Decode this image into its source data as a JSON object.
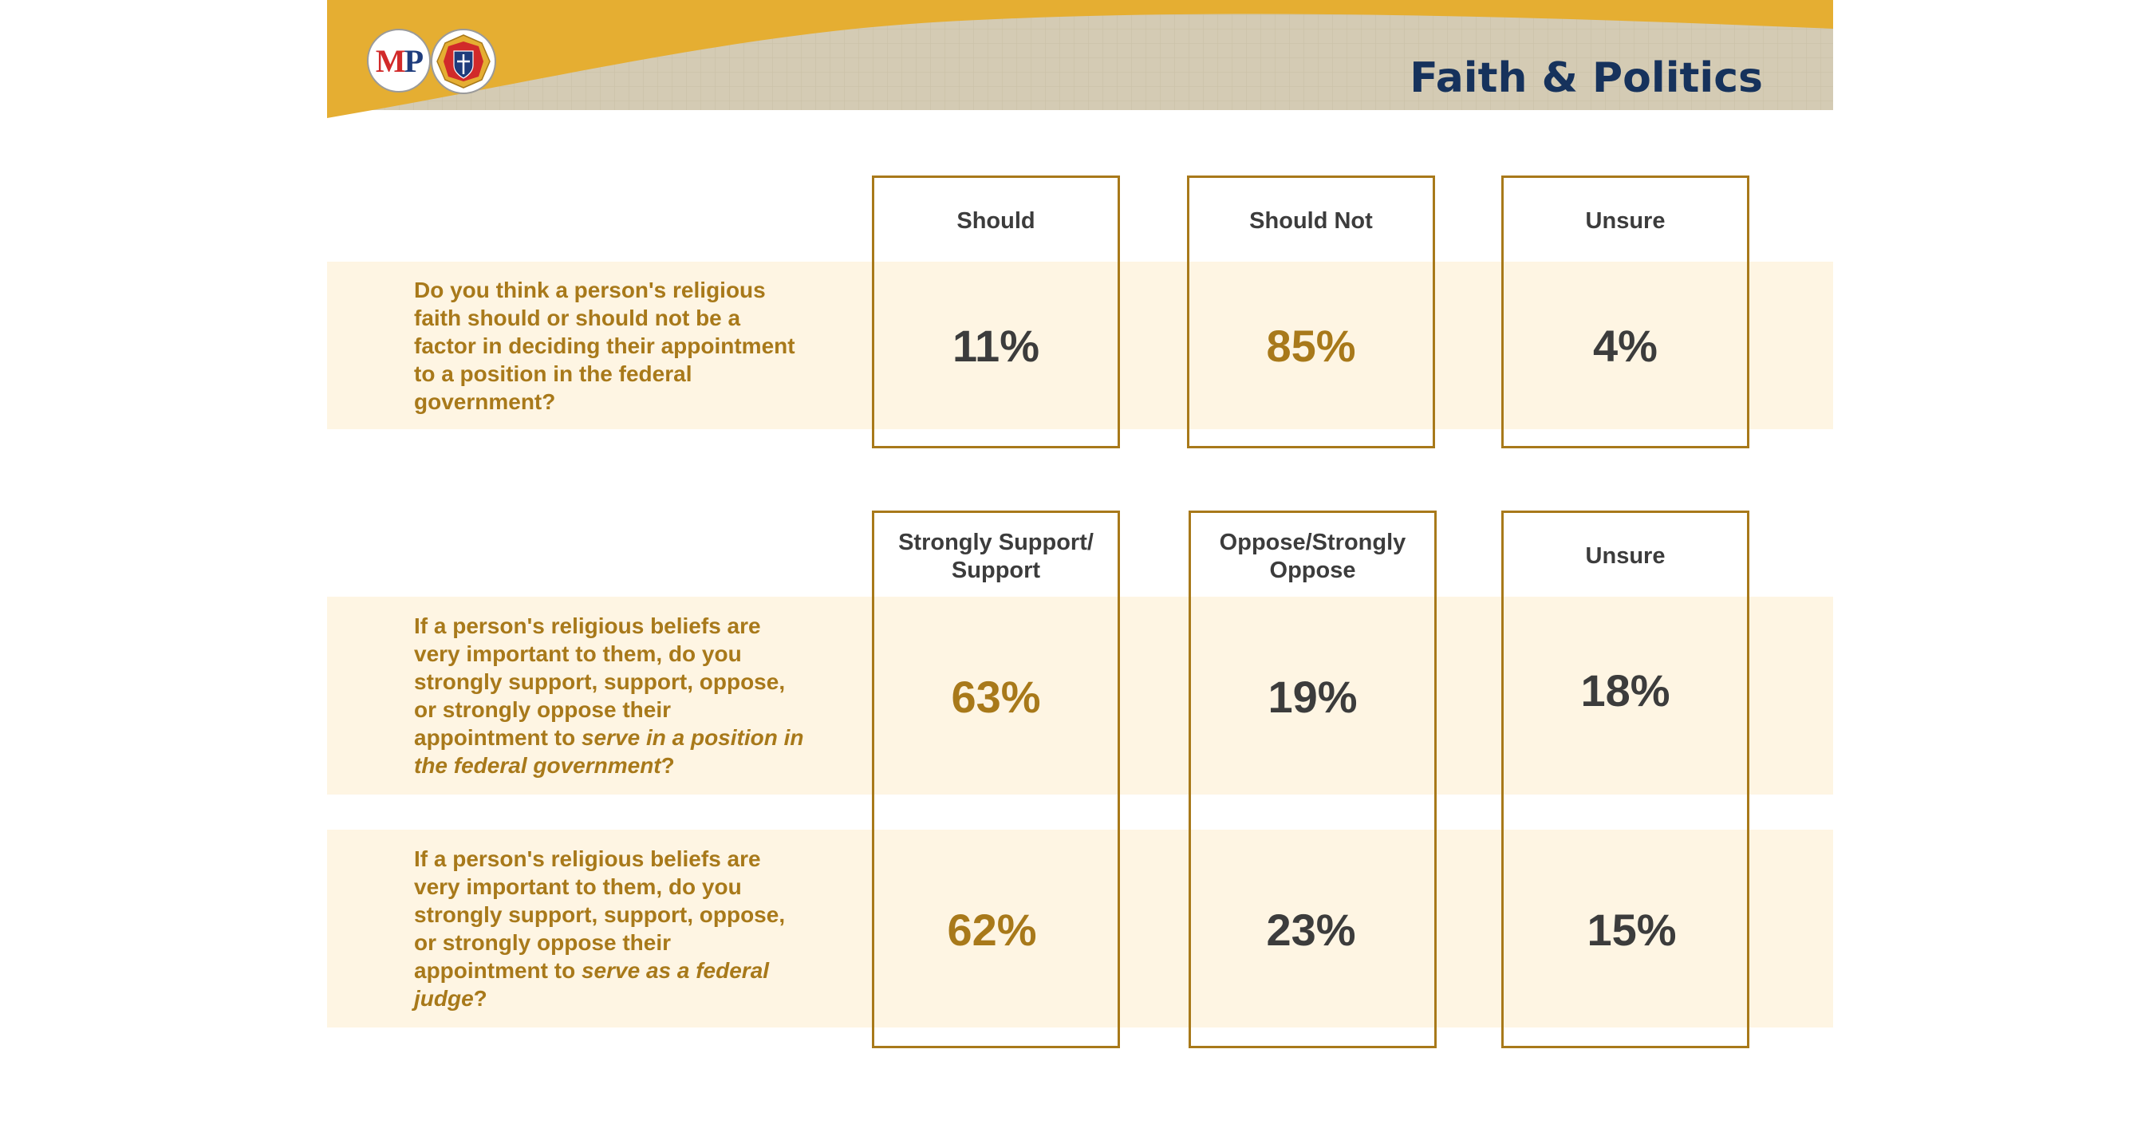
{
  "title": "Faith & Politics",
  "logos": {
    "mp_logo": {
      "m": "M",
      "p": "P"
    },
    "kc_logo_icon": "knights-of-columbus-emblem-icon"
  },
  "colors": {
    "gold": "#a8791a",
    "header_gold": "#e5ae32",
    "header_stripe": "#d4cbb4",
    "title_navy": "#16325c",
    "band": "#fef5e3",
    "value_gray": "#3c3c3c"
  },
  "chart_data": [
    {
      "type": "table",
      "columns": [
        "Should",
        "Should Not",
        "Unsure"
      ],
      "rows": [
        {
          "question_parts": [
            {
              "text": "Do you think a person's religious faith should or should not be a factor in deciding their appointment to a position in the federal government?",
              "italic": false
            }
          ],
          "values": [
            11,
            85,
            4
          ],
          "labels": [
            "11%",
            "85%",
            "4%"
          ],
          "highlight": [
            false,
            true,
            false
          ]
        }
      ]
    },
    {
      "type": "table",
      "columns": [
        "Strongly Support/ Support",
        "Oppose/Strongly Oppose",
        "Unsure"
      ],
      "rows": [
        {
          "question_parts": [
            {
              "text": "If a person's religious beliefs are very important to them, do you strongly support, support, oppose, or strongly oppose their appointment to ",
              "italic": false
            },
            {
              "text": "serve in a position in the federal government",
              "italic": true
            },
            {
              "text": "?",
              "italic": false
            }
          ],
          "values": [
            63,
            19,
            18
          ],
          "labels": [
            "63%",
            "19%",
            "18%"
          ],
          "highlight": [
            true,
            false,
            false
          ]
        },
        {
          "question_parts": [
            {
              "text": "If a person's religious beliefs are very important to them, do you strongly support, support, oppose, or strongly oppose their appointment to ",
              "italic": false
            },
            {
              "text": "serve as a federal judge",
              "italic": true
            },
            {
              "text": "?",
              "italic": false
            }
          ],
          "values": [
            62,
            23,
            15
          ],
          "labels": [
            "62%",
            "23%",
            "15%"
          ],
          "highlight": [
            true,
            false,
            false
          ]
        }
      ]
    }
  ]
}
